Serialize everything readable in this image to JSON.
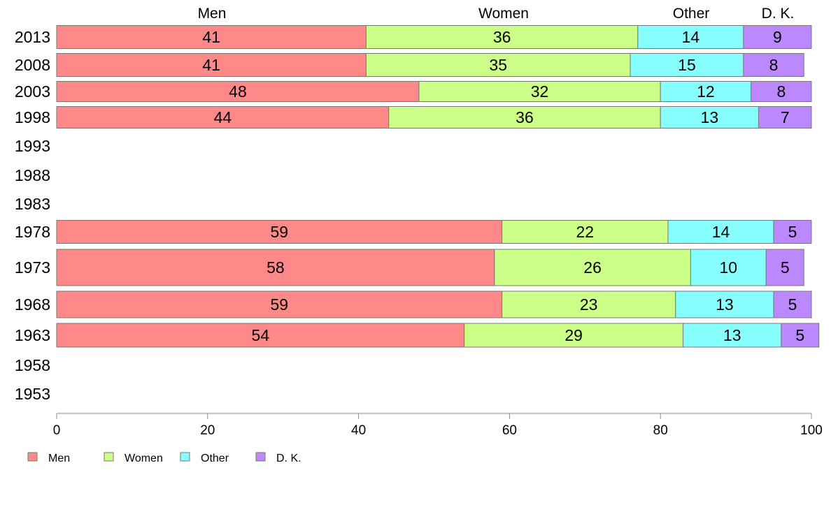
{
  "chart_data": {
    "type": "bar",
    "orientation": "horizontal",
    "stacked": true,
    "categories": [
      "2013",
      "2008",
      "2003",
      "1998",
      "1993",
      "1988",
      "1983",
      "1978",
      "1973",
      "1968",
      "1963",
      "1958",
      "1953"
    ],
    "series": [
      {
        "name": "Men",
        "color": "#ff8888",
        "values": [
          41,
          41,
          48,
          44,
          null,
          null,
          null,
          59,
          58,
          59,
          54,
          null,
          null
        ]
      },
      {
        "name": "Women",
        "color": "#ccff88",
        "values": [
          36,
          35,
          32,
          36,
          null,
          null,
          null,
          22,
          26,
          23,
          29,
          null,
          null
        ]
      },
      {
        "name": "Other",
        "color": "#88ffff",
        "values": [
          14,
          15,
          12,
          13,
          null,
          null,
          null,
          14,
          10,
          13,
          13,
          null,
          null
        ]
      },
      {
        "name": "D. K.",
        "color": "#bb88ff",
        "values": [
          9,
          8,
          8,
          7,
          null,
          null,
          null,
          5,
          5,
          5,
          5,
          null,
          null
        ]
      }
    ],
    "top_labels": [
      "Men",
      "Women",
      "Other",
      "D. K."
    ],
    "xlim": [
      0,
      100
    ],
    "xticks": [
      "0",
      "20",
      "40",
      "60",
      "80",
      "100"
    ],
    "grid": false,
    "legend_position": "bottom-left"
  }
}
